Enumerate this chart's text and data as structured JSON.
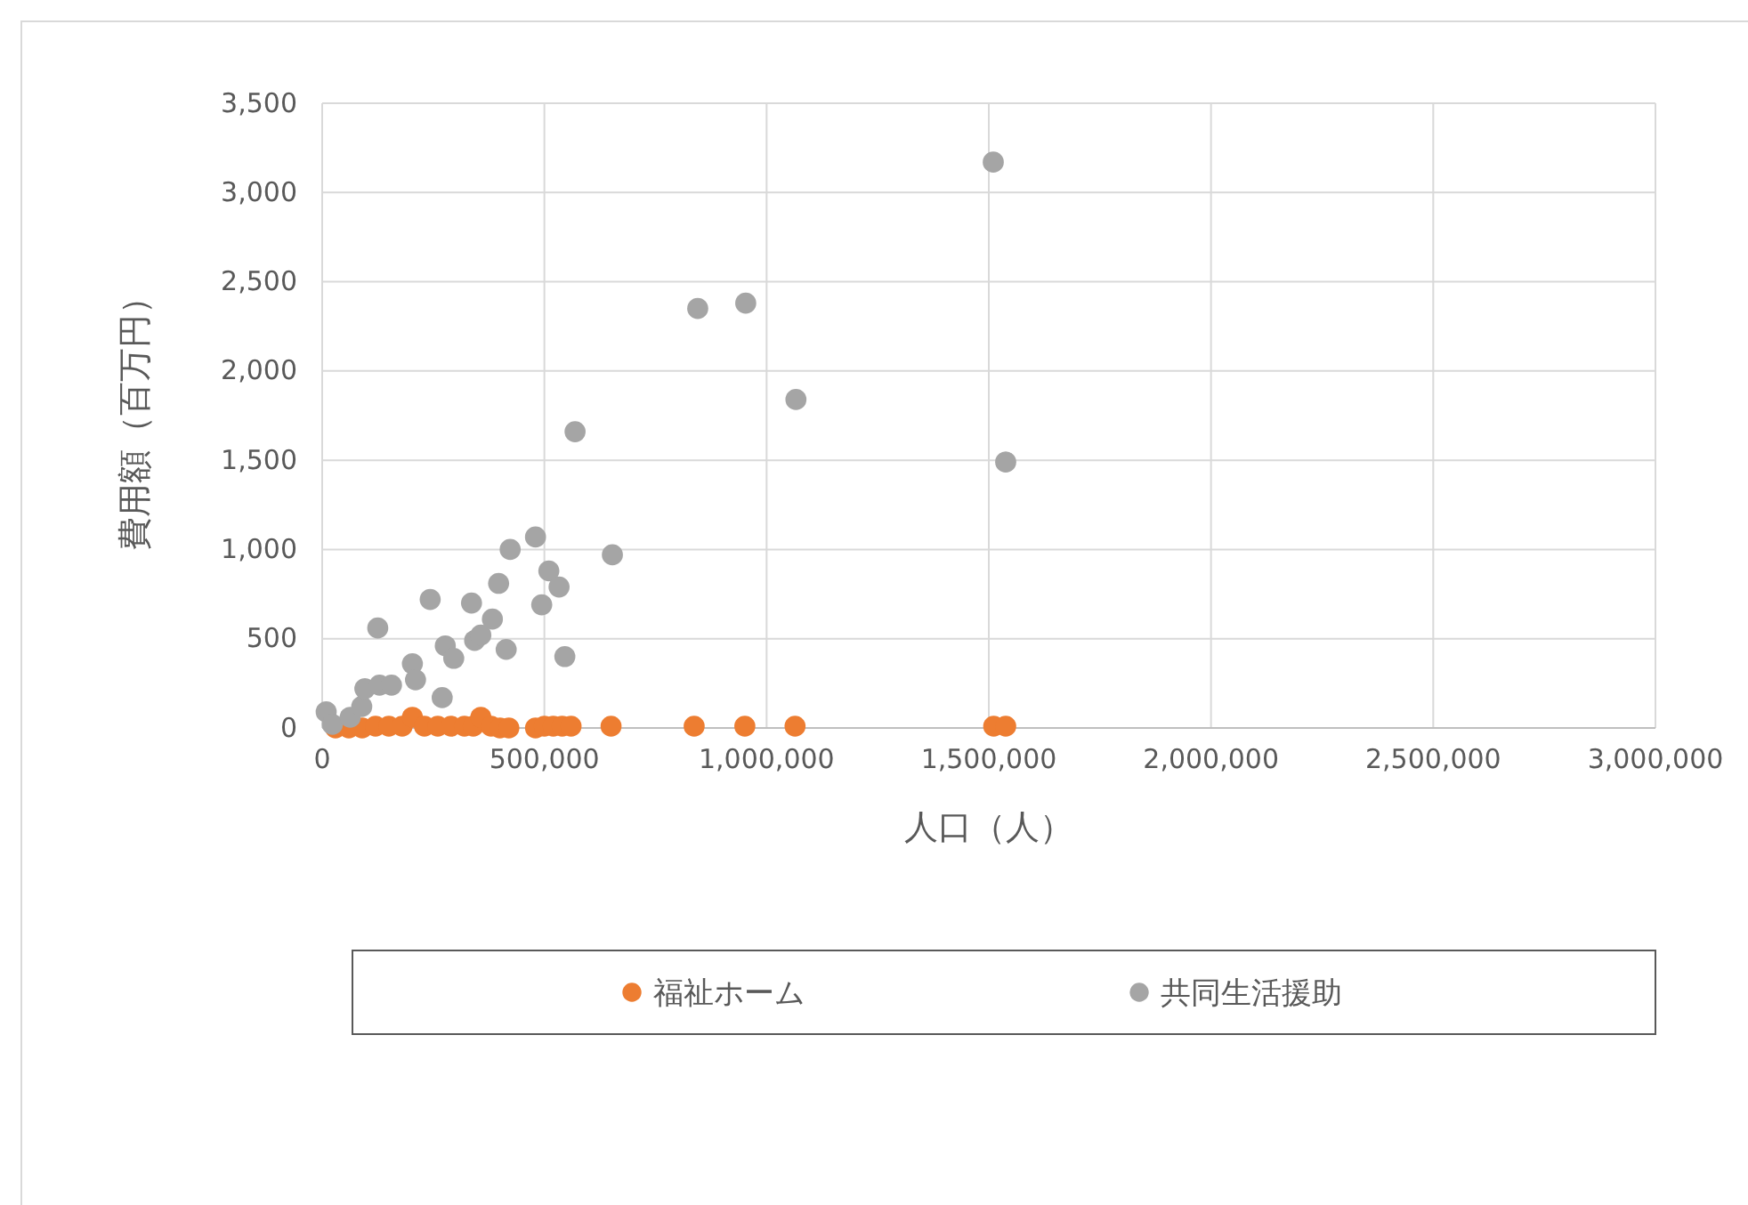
{
  "chart_data": {
    "type": "scatter",
    "xlabel": "人口（人）",
    "ylabel": "費用額（百万円）",
    "xlim": [
      0,
      3000000
    ],
    "ylim": [
      0,
      3500
    ],
    "xticks": [
      {
        "value": 0,
        "label": "0"
      },
      {
        "value": 500000,
        "label": "500,000"
      },
      {
        "value": 1000000,
        "label": "1,000,000"
      },
      {
        "value": 1500000,
        "label": "1,500,000"
      },
      {
        "value": 2000000,
        "label": "2,000,000"
      },
      {
        "value": 2500000,
        "label": "2,500,000"
      },
      {
        "value": 3000000,
        "label": "3,000,000"
      }
    ],
    "yticks": [
      {
        "value": 0,
        "label": "0"
      },
      {
        "value": 500,
        "label": "500"
      },
      {
        "value": 1000,
        "label": "1,000"
      },
      {
        "value": 1500,
        "label": "1,500"
      },
      {
        "value": 2000,
        "label": "2,000"
      },
      {
        "value": 2500,
        "label": "2,500"
      },
      {
        "value": 3000,
        "label": "3,000"
      },
      {
        "value": 3500,
        "label": "3,500"
      }
    ],
    "grid": true,
    "legend": "bottom",
    "marker": "circle",
    "series": [
      {
        "name": "福祉ホーム",
        "color": "#ed7d31",
        "x": [
          30000,
          60000,
          90000,
          120000,
          150000,
          180000,
          203000,
          230000,
          260000,
          290000,
          320000,
          340000,
          357000,
          380000,
          400000,
          420000,
          480000,
          500000,
          520000,
          540000,
          560000,
          650000,
          837000,
          951000,
          1064000,
          1511000,
          1538000
        ],
        "values": [
          0,
          0,
          0,
          10,
          10,
          10,
          60,
          10,
          10,
          10,
          10,
          10,
          60,
          10,
          0,
          0,
          0,
          10,
          10,
          10,
          10,
          10,
          10,
          10,
          10,
          10,
          10
        ]
      },
      {
        "name": "共同生活援助",
        "color": "#a5a5a5",
        "x": [
          9000,
          23000,
          63000,
          89000,
          96000,
          125000,
          129000,
          156000,
          203000,
          210000,
          243000,
          270000,
          277000,
          296000,
          336000,
          343000,
          357000,
          383000,
          397000,
          414000,
          423000,
          480000,
          494000,
          510000,
          533000,
          546000,
          569000,
          653000,
          845000,
          953000,
          1066000,
          1510000,
          1538000
        ],
        "values": [
          90,
          20,
          60,
          120,
          220,
          560,
          240,
          240,
          360,
          270,
          720,
          170,
          460,
          390,
          700,
          490,
          520,
          610,
          810,
          440,
          1000,
          1070,
          690,
          880,
          790,
          400,
          1660,
          970,
          2350,
          2380,
          1840,
          3170,
          1490
        ]
      }
    ]
  }
}
